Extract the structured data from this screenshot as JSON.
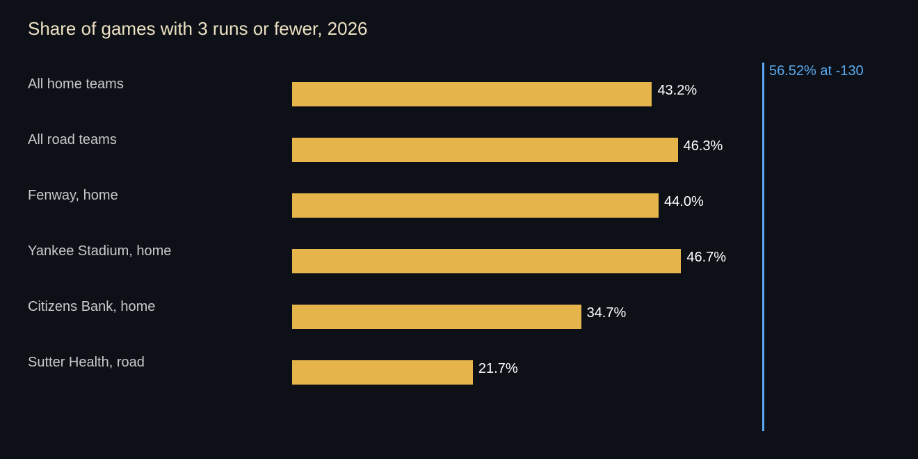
{
  "chart_data": {
    "type": "bar",
    "orientation": "horizontal",
    "title": "Share of games with 3 runs or fewer, 2026",
    "xlabel": "",
    "ylabel": "",
    "categories": [
      "All home teams",
      "All road teams",
      "Fenway, home",
      "Yankee Stadium, home",
      "Citizens Bank, home",
      "Sutter Health, road"
    ],
    "values": [
      43.2,
      46.3,
      44.0,
      46.7,
      34.7,
      21.7
    ],
    "value_labels": [
      "43.2%",
      "46.3%",
      "44.0%",
      "46.7%",
      "34.7%",
      "21.7%"
    ],
    "xlim": [
      0,
      56.52
    ],
    "grid": false,
    "legend": "none",
    "reference_line": {
      "value": 56.52,
      "label": "56.52% at -130"
    },
    "colors": {
      "background": "#0d1017",
      "bar": "#e5b54b",
      "reference": "#5aa9f0",
      "title": "#ece0c2",
      "category_text": "#c9c9c9",
      "value_text": "#ffffff"
    }
  }
}
